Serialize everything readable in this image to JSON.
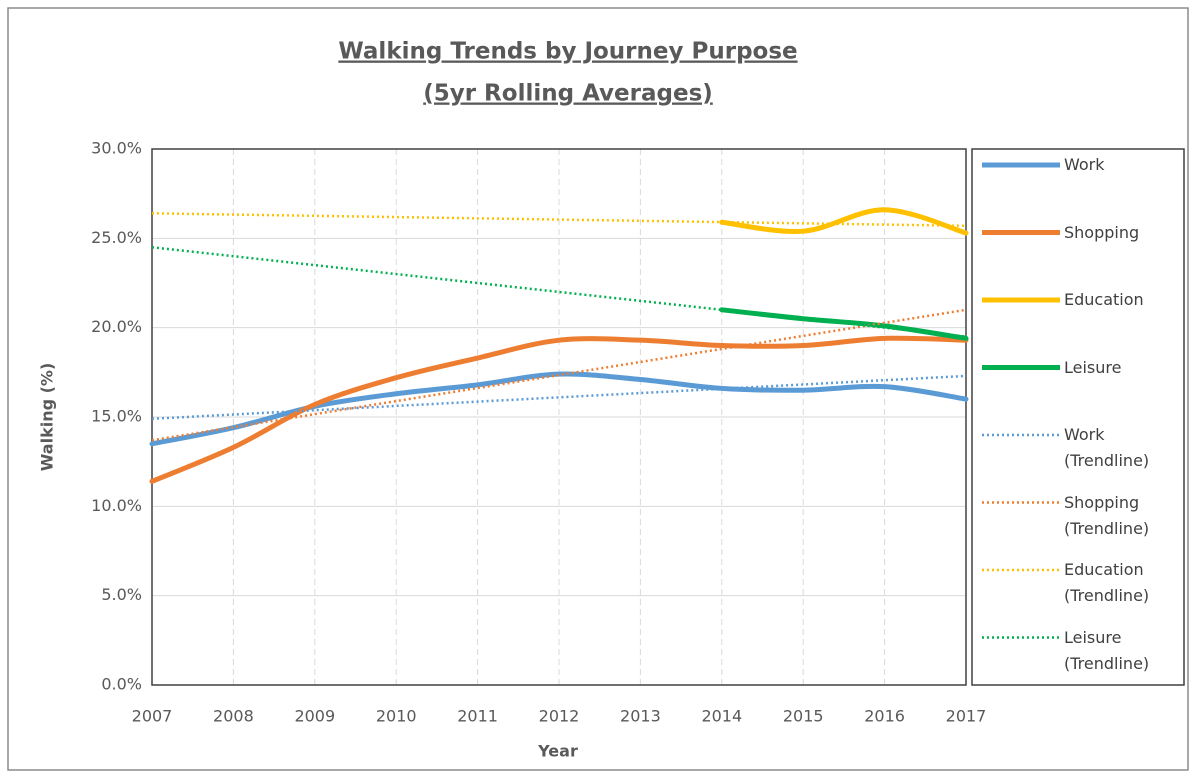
{
  "chart_data": {
    "type": "line",
    "title": "Walking Trends by Journey Purpose",
    "subtitle": "(5yr Rolling Averages)",
    "xlabel": "Year",
    "ylabel": "Walking (%)",
    "x": [
      2007,
      2008,
      2009,
      2010,
      2011,
      2012,
      2013,
      2014,
      2015,
      2016,
      2017
    ],
    "xlim": [
      2007,
      2017
    ],
    "xticks": [
      2007,
      2008,
      2009,
      2010,
      2011,
      2012,
      2013,
      2014,
      2015,
      2016,
      2017
    ],
    "ylim": [
      0,
      30
    ],
    "yticks": [
      {
        "value": 0,
        "label": "0.0%"
      },
      {
        "value": 5,
        "label": "5.0%"
      },
      {
        "value": 10,
        "label": "10.0%"
      },
      {
        "value": 15,
        "label": "15.0%"
      },
      {
        "value": 20,
        "label": "20.0%"
      },
      {
        "value": 25,
        "label": "25.0%"
      },
      {
        "value": 30,
        "label": "30.0%"
      }
    ],
    "grid": true,
    "legend": "right",
    "series": [
      {
        "name": "Work",
        "color": "#5b9bd5",
        "style": "solid",
        "values": [
          13.5,
          14.4,
          15.6,
          16.3,
          16.8,
          17.4,
          17.1,
          16.6,
          16.5,
          16.7,
          16.0
        ]
      },
      {
        "name": "Shopping",
        "color": "#ed7d31",
        "style": "solid",
        "values": [
          11.4,
          13.3,
          15.7,
          17.2,
          18.3,
          19.3,
          19.3,
          19.0,
          19.0,
          19.4,
          19.3
        ]
      },
      {
        "name": "Education",
        "color": "#ffc000",
        "style": "solid",
        "values": [
          null,
          null,
          null,
          null,
          null,
          null,
          null,
          25.9,
          25.4,
          26.6,
          25.3
        ]
      },
      {
        "name": "Leisure",
        "color": "#00b050",
        "style": "solid",
        "values": [
          null,
          null,
          null,
          null,
          null,
          null,
          null,
          21.0,
          20.5,
          20.1,
          19.4
        ]
      },
      {
        "name": "Work (Trendline)",
        "color": "#5b9bd5",
        "style": "dotted",
        "values": [
          14.9,
          15.14,
          15.38,
          15.62,
          15.86,
          16.1,
          16.34,
          16.58,
          16.82,
          17.06,
          17.3
        ]
      },
      {
        "name": "Shopping (Trendline)",
        "color": "#ed7d31",
        "style": "dotted",
        "values": [
          13.7,
          14.43,
          15.16,
          15.89,
          16.62,
          17.35,
          18.08,
          18.81,
          19.54,
          20.27,
          21.0
        ]
      },
      {
        "name": "Education (Trendline)",
        "color": "#ffc000",
        "style": "dotted",
        "values": [
          26.4,
          26.33,
          26.26,
          26.19,
          26.12,
          26.05,
          25.98,
          25.91,
          25.84,
          25.77,
          25.7
        ]
      },
      {
        "name": "Leisure (Trendline)",
        "color": "#00b050",
        "style": "dotted",
        "values": [
          24.5,
          24.0,
          23.5,
          23.0,
          22.5,
          22.0,
          21.5,
          21.0,
          20.5,
          20.0,
          19.5
        ]
      }
    ]
  }
}
